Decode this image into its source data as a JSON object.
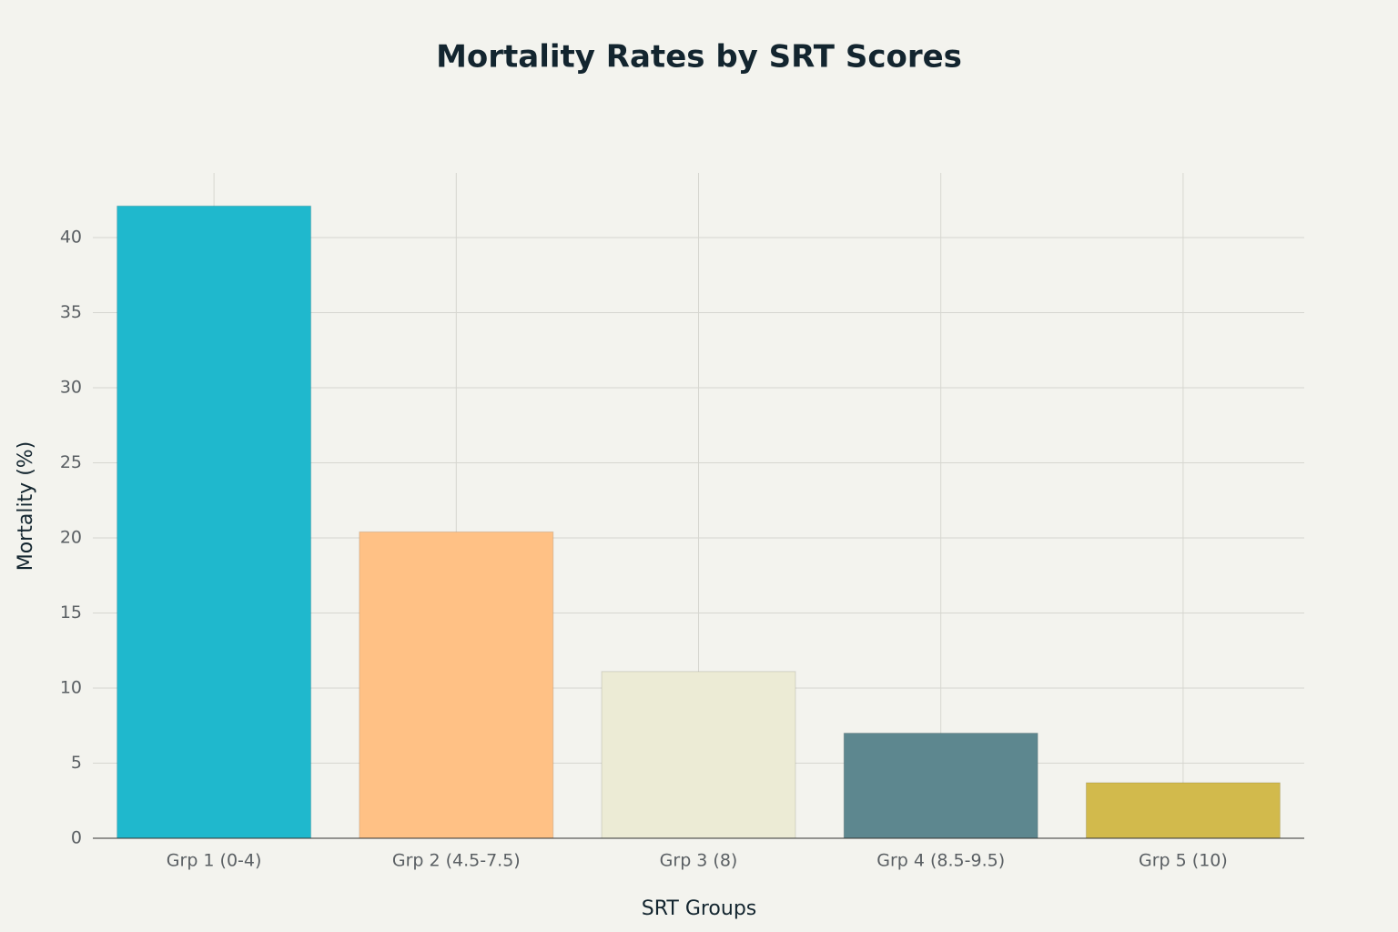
{
  "chart_data": {
    "type": "bar",
    "title": "Mortality Rates by SRT Scores",
    "x_label": "SRT Groups",
    "y_label": "Mortality (%)",
    "categories": [
      "Grp 1 (0-4)",
      "Grp 2 (4.5-7.5)",
      "Grp 3 (8)",
      "Grp 4 (8.5-9.5)",
      "Grp 5 (10)"
    ],
    "values": [
      42.1,
      20.4,
      11.1,
      7.0,
      3.7
    ],
    "colors": [
      "#1FB8CD",
      "#FFC185",
      "#ECEBD5",
      "#5D878F",
      "#D2BA4C"
    ],
    "ylim": [
      0,
      44.3
    ],
    "yticks": [
      0,
      5,
      10,
      15,
      20,
      25,
      30,
      35,
      40
    ],
    "grid": true
  }
}
